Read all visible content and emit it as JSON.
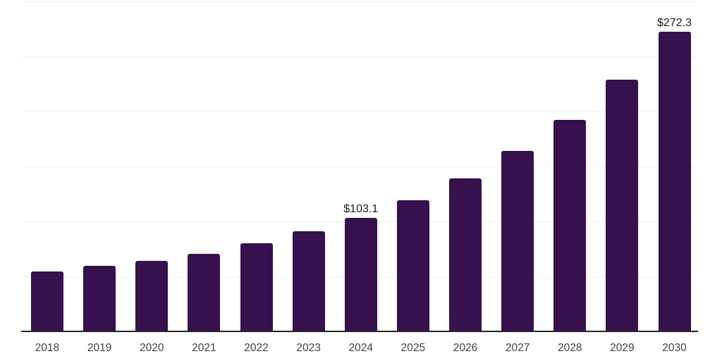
{
  "chart_data": {
    "type": "bar",
    "categories": [
      "2018",
      "2019",
      "2020",
      "2021",
      "2022",
      "2023",
      "2024",
      "2025",
      "2026",
      "2027",
      "2028",
      "2029",
      "2030"
    ],
    "values": [
      54.8,
      59.3,
      63.8,
      70.8,
      80.4,
      91.0,
      103.1,
      119.2,
      139.1,
      164.1,
      192.6,
      228.8,
      272.3
    ],
    "value_labels": [
      "",
      "",
      "",
      "",
      "",
      "",
      "$103.1",
      "",
      "",
      "",
      "",
      "",
      "$272.3"
    ],
    "title": "",
    "xlabel": "",
    "ylabel": "",
    "ylim": [
      0,
      300
    ],
    "gridline_step": 50,
    "grid": "horizontal",
    "legend": "none",
    "y_tick_labels_visible": false,
    "colors": {
      "bar": "#36114D",
      "gridline": "#f0f0f0",
      "axis_line": "#262626",
      "tick_label": "#404040",
      "value_label": "#1a1a1a",
      "background": "#ffffff"
    }
  }
}
